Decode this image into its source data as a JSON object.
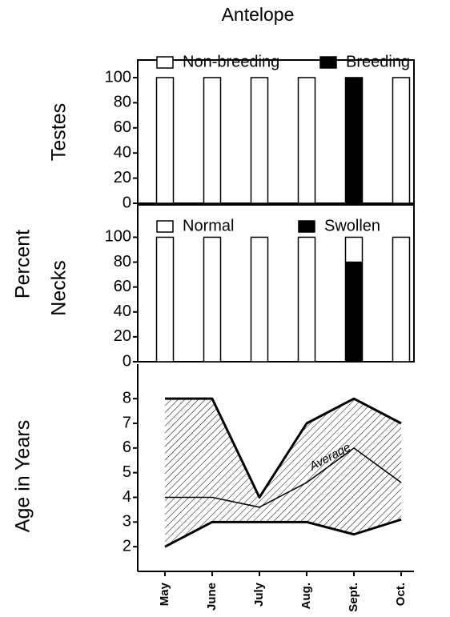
{
  "title": "Antelope",
  "ylabel": "Percent",
  "chart_data": [
    {
      "type": "bar",
      "stacked": true,
      "ylabel": "Testes",
      "series": [
        {
          "name": "Non-breeding",
          "color": "#ffffff",
          "values": [
            100,
            100,
            100,
            100,
            0,
            100
          ]
        },
        {
          "name": "Breeding",
          "color": "#000000",
          "values": [
            0,
            0,
            0,
            0,
            100,
            0
          ]
        }
      ],
      "ylim": [
        0,
        114
      ],
      "yticks": [
        0,
        20,
        40,
        60,
        80,
        100
      ]
    },
    {
      "type": "bar",
      "stacked": true,
      "ylabel": "Necks",
      "series": [
        {
          "name": "Normal",
          "color": "#ffffff",
          "values": [
            100,
            100,
            100,
            100,
            20,
            100
          ]
        },
        {
          "name": "Swollen",
          "color": "#000000",
          "values": [
            0,
            0,
            0,
            0,
            80,
            0
          ]
        }
      ],
      "ylim": [
        0,
        126
      ],
      "yticks": [
        0,
        20,
        40,
        60,
        80,
        100
      ]
    },
    {
      "type": "area",
      "ylabel": "Age in Years",
      "categories": [
        "May",
        "June",
        "July",
        "Aug.",
        "Sept.",
        "Oct."
      ],
      "series": [
        {
          "color": "#000000",
          "values": [
            8,
            8,
            4,
            7,
            8,
            7
          ]
        },
        {
          "color": "#000000",
          "values": [
            4,
            4,
            3.6,
            4.6,
            6,
            4.6
          ]
        },
        {
          "color": "#000000",
          "values": [
            2,
            3,
            3,
            3,
            2.5,
            3.1
          ]
        }
      ],
      "annotation": "Average",
      "ylim": [
        1,
        9.4
      ],
      "yticks": [
        2,
        3,
        4,
        5,
        6,
        7,
        8
      ]
    }
  ]
}
